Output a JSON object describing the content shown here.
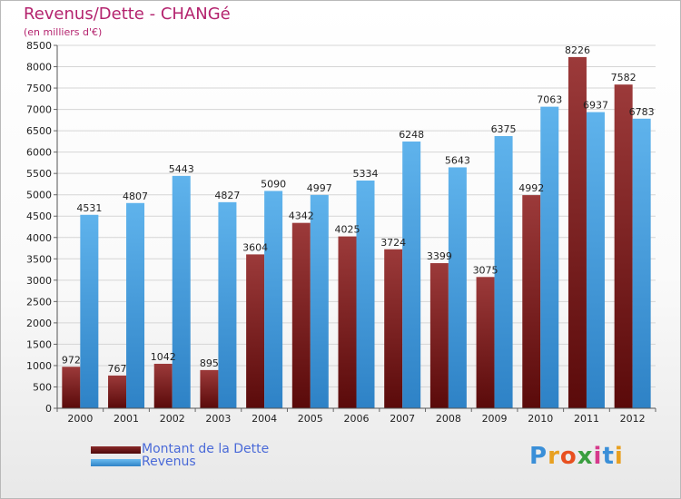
{
  "header": {
    "title": "Revenus/Dette - CHANGé",
    "subtitle": "(en milliers d'€)"
  },
  "legend": {
    "debt_label": "Montant de la Dette",
    "revenue_label": "Revenus"
  },
  "logo": {
    "text": "Proxiti",
    "letters": [
      "P",
      "r",
      "o",
      "x",
      "i",
      "t",
      "i"
    ],
    "letter_colors": [
      "#3a8fd8",
      "#e8a020",
      "#e85020",
      "#3a9e40",
      "#d63a8c",
      "#3a8fd8",
      "#e8a020"
    ]
  },
  "colors": {
    "debt_top": "#9c3a3a",
    "debt_bottom": "#5a0a0a",
    "revenue_top": "#5fb3ec",
    "revenue_bottom": "#2e82c6",
    "grid": "#d5d5d5",
    "axis_text": "#222222"
  },
  "chart_data": {
    "type": "bar",
    "title": "Revenus/Dette - CHANGé",
    "subtitle": "(en milliers d'€)",
    "categories": [
      "2000",
      "2001",
      "2002",
      "2003",
      "2004",
      "2005",
      "2006",
      "2007",
      "2008",
      "2009",
      "2010",
      "2011",
      "2012"
    ],
    "series": [
      {
        "name": "Montant de la Dette",
        "values": [
          972,
          767,
          1042,
          895,
          3604,
          4342,
          4025,
          3724,
          3399,
          3075,
          4992,
          8226,
          7582
        ]
      },
      {
        "name": "Revenus",
        "values": [
          4531,
          4807,
          5443,
          4827,
          5090,
          4997,
          5334,
          6248,
          5643,
          6375,
          7063,
          6937,
          6783
        ]
      }
    ],
    "ylim": [
      0,
      8500
    ],
    "yticks": [
      0,
      500,
      1000,
      1500,
      2000,
      2500,
      3000,
      3500,
      4000,
      4500,
      5000,
      5500,
      6000,
      6500,
      7000,
      7500,
      8000,
      8500
    ],
    "grid": true,
    "legend_position": "bottom-left"
  }
}
